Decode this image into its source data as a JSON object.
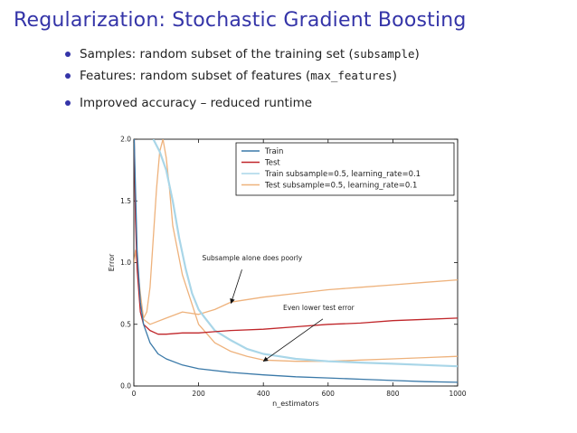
{
  "slide": {
    "title": "Regularization: Stochastic Gradient Boosting",
    "bullets": [
      {
        "pre": "Samples: random subset of the training set (",
        "code": "subsample",
        "post": ")"
      },
      {
        "pre": "Features: random subset of features (",
        "code": "max_features",
        "post": ")"
      },
      {
        "pre": "Improved accuracy – reduced runtime",
        "code": "",
        "post": ""
      }
    ]
  },
  "chart_data": {
    "type": "line",
    "xlabel": "n_estimators",
    "ylabel": "Error",
    "xlim": [
      0,
      1000
    ],
    "ylim": [
      0,
      2.0
    ],
    "xticks": [
      0,
      200,
      400,
      600,
      800,
      1000
    ],
    "yticks": [
      "0.0",
      "0.5",
      "1.0",
      "1.5",
      "2.0"
    ],
    "legend_position": "top-right",
    "series": [
      {
        "name": "Train",
        "color": "#3a79a8",
        "x": [
          1,
          5,
          10,
          20,
          30,
          50,
          75,
          100,
          150,
          200,
          300,
          400,
          500,
          600,
          700,
          800,
          900,
          1000
        ],
        "y": [
          2.0,
          1.6,
          1.1,
          0.68,
          0.5,
          0.35,
          0.26,
          0.22,
          0.17,
          0.14,
          0.11,
          0.09,
          0.075,
          0.065,
          0.055,
          0.045,
          0.035,
          0.03
        ]
      },
      {
        "name": "Test",
        "color": "#c0262a",
        "x": [
          1,
          5,
          10,
          20,
          30,
          50,
          75,
          100,
          150,
          200,
          250,
          300,
          400,
          500,
          600,
          700,
          800,
          900,
          1000
        ],
        "y": [
          2.0,
          1.35,
          0.95,
          0.6,
          0.5,
          0.45,
          0.42,
          0.42,
          0.43,
          0.43,
          0.44,
          0.45,
          0.46,
          0.48,
          0.5,
          0.51,
          0.53,
          0.54,
          0.55
        ]
      },
      {
        "name": "Train subsample=0.5, learning_rate=0.1",
        "color": "#a9d6e8",
        "x": [
          60,
          80,
          100,
          120,
          140,
          160,
          180,
          200,
          220,
          250,
          300,
          350,
          400,
          450,
          500,
          600,
          700,
          800,
          900,
          1000
        ],
        "y": [
          2.0,
          1.9,
          1.75,
          1.5,
          1.2,
          0.95,
          0.75,
          0.62,
          0.55,
          0.45,
          0.37,
          0.3,
          0.26,
          0.24,
          0.22,
          0.2,
          0.19,
          0.18,
          0.17,
          0.16
        ]
      },
      {
        "name": "Test subsample=0.5, learning_rate=0.1",
        "color": "#eeb27c",
        "x": [
          1,
          5,
          10,
          20,
          30,
          40,
          50,
          60,
          70,
          80,
          90,
          100,
          110,
          120,
          150,
          200,
          250,
          300,
          350,
          400,
          500,
          600,
          700,
          800,
          900,
          1000
        ],
        "y": [
          1.0,
          1.1,
          1.0,
          0.75,
          0.55,
          0.6,
          0.8,
          1.2,
          1.6,
          1.9,
          2.0,
          1.85,
          1.6,
          1.3,
          0.9,
          0.5,
          0.35,
          0.28,
          0.24,
          0.21,
          0.2,
          0.2,
          0.21,
          0.22,
          0.23,
          0.24
        ]
      },
      {
        "name": "",
        "color": "#eeb27c",
        "x": [
          25,
          50,
          100,
          150,
          200,
          250,
          300,
          400,
          500,
          600,
          700,
          800,
          900,
          1000
        ],
        "y": [
          0.55,
          0.5,
          0.55,
          0.6,
          0.58,
          0.62,
          0.68,
          0.72,
          0.75,
          0.78,
          0.8,
          0.82,
          0.84,
          0.86
        ]
      }
    ],
    "annotations": [
      {
        "text": "Subsample alone does poorly",
        "x": 250,
        "y": 0.98,
        "point_x": 300,
        "point_y": 0.67
      },
      {
        "text": "Even lower test error",
        "x": 500,
        "y": 0.58,
        "point_x": 400,
        "point_y": 0.2
      }
    ]
  }
}
